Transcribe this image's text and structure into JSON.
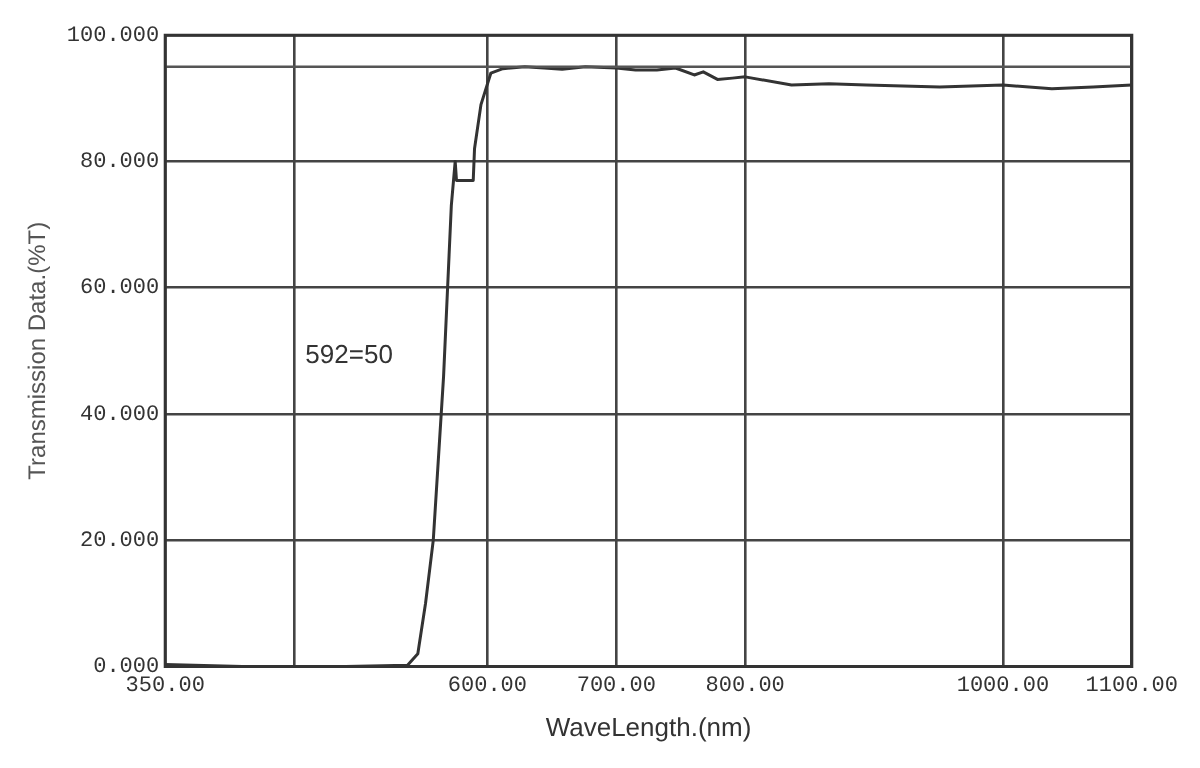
{
  "chart_data": {
    "type": "line",
    "xlabel": "WaveLength.(nm)",
    "ylabel": "Transmission Data.(%T)",
    "annotations": [
      "592=50"
    ],
    "xlim": [
      350,
      1100
    ],
    "xticks": [
      {
        "value": 350,
        "label": "350.00"
      },
      {
        "value": 450,
        "label": null
      },
      {
        "value": 600,
        "label": "600.00"
      },
      {
        "value": 700,
        "label": "700.00"
      },
      {
        "value": 800,
        "label": "800.00"
      },
      {
        "value": 1000,
        "label": "1000.00"
      },
      {
        "value": 1100,
        "label": "1100.00"
      }
    ],
    "ylim": [
      0,
      100
    ],
    "yticks": [
      {
        "value": 0,
        "label": "0.000"
      },
      {
        "value": 20,
        "label": "20.000"
      },
      {
        "value": 40,
        "label": "40.000"
      },
      {
        "value": 60,
        "label": "60.000"
      },
      {
        "value": 80,
        "label": "80.000"
      },
      {
        "value": 100,
        "label": "100.000"
      }
    ],
    "grid": true,
    "legend": false,
    "marker": "none",
    "line_style": "solid",
    "ref_lines": [
      {
        "axis": "y",
        "value": 95,
        "color": "#555555"
      }
    ],
    "series": [
      {
        "color": "#333333",
        "x": [
          350,
          410,
          450,
          490,
          538,
          546,
          552,
          558,
          562,
          566,
          572,
          575,
          576,
          578,
          589,
          590,
          595,
          602.7,
          612,
          629,
          644,
          658,
          676,
          700,
          715,
          731.5,
          746,
          760.5,
          767.5,
          778.5,
          790,
          800,
          836,
          865,
          894,
          951,
          1000,
          1038,
          1070,
          1100
        ],
        "values": [
          0.3,
          0,
          0,
          0,
          0.2,
          2,
          10,
          20,
          33,
          46,
          73,
          80,
          77,
          77,
          77,
          82,
          89,
          94,
          94.7,
          95,
          94.8,
          94.6,
          95,
          94.8,
          94.5,
          94.5,
          94.8,
          93.7,
          94.2,
          93,
          93.2,
          93.4,
          92.1,
          92.3,
          92.1,
          91.8,
          92.1,
          91.5,
          91.8,
          92.1
        ]
      }
    ]
  }
}
